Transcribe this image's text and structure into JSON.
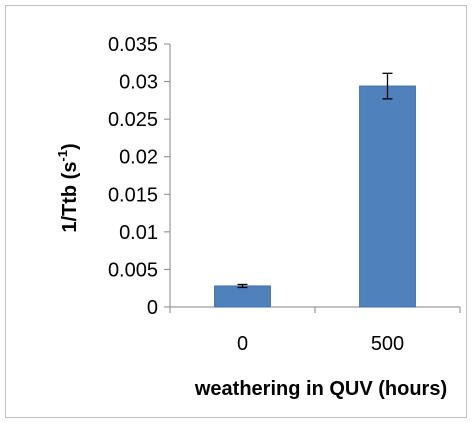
{
  "chart_data": {
    "type": "bar",
    "categories": [
      "0",
      "500"
    ],
    "values": [
      0.0028,
      0.0294
    ],
    "error": [
      0.0002,
      0.0017
    ],
    "xlabel": "weathering in QUV (hours)",
    "ylabel_main": "1/Ttb (s",
    "ylabel_sup": "-1",
    "ylabel_close": ")",
    "ylim": [
      0,
      0.035
    ],
    "yticks": [
      "0",
      "0.005",
      "0.01",
      "0.015",
      "0.02",
      "0.025",
      "0.03",
      "0.035"
    ],
    "grid": false,
    "legend": "none",
    "colors": {
      "bar": "#4f81bd",
      "bar_edge": "#3f6fa8",
      "axis": "#868686",
      "frame": "#bfbfbf",
      "error": "#000000"
    }
  }
}
